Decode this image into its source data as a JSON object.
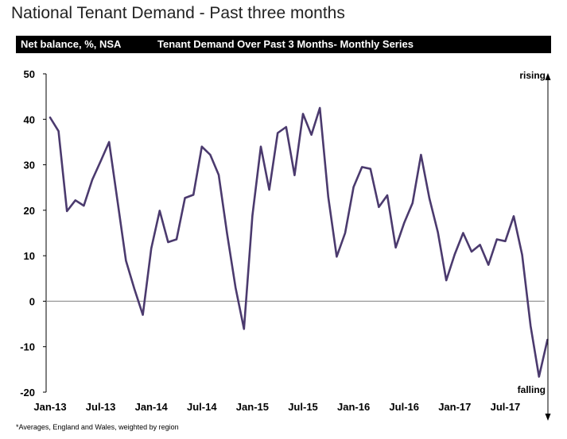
{
  "page_title": "National Tenant Demand - Past three months",
  "header": {
    "left_label": "Net balance, %, NSA",
    "chart_title": "Tenant Demand Over Past 3 Months- Monthly Series"
  },
  "footnote": "*Averages, England and Wales, weighted by region",
  "colors": {
    "line": "#4b3a6e",
    "axis": "#000000",
    "zero_line": "#7f7f7f"
  },
  "chart_data": {
    "type": "line",
    "ylim": [
      -20,
      50
    ],
    "yticks": [
      50,
      40,
      30,
      20,
      10,
      0,
      -10,
      -20
    ],
    "xtick_labels": [
      "Jan-13",
      "Jul-13",
      "Jan-14",
      "Jul-14",
      "Jan-15",
      "Jul-15",
      "Jan-16",
      "Jul-16",
      "Jan-17",
      "Jul-17"
    ],
    "right_axis": {
      "top_label": "rising",
      "bottom_label": "falling"
    },
    "grid": false,
    "series": [
      {
        "x": [
          "2013-01",
          "2013-02",
          "2013-03",
          "2013-04",
          "2013-05",
          "2013-06",
          "2013-07",
          "2013-08",
          "2013-09",
          "2013-10",
          "2013-11",
          "2013-12",
          "2014-01",
          "2014-02",
          "2014-03",
          "2014-04",
          "2014-05",
          "2014-06",
          "2014-07",
          "2014-08",
          "2014-09",
          "2014-10",
          "2014-11",
          "2014-12",
          "2015-01",
          "2015-02",
          "2015-03",
          "2015-04",
          "2015-05",
          "2015-06",
          "2015-07",
          "2015-08",
          "2015-09",
          "2015-10",
          "2015-11",
          "2015-12",
          "2016-01",
          "2016-02",
          "2016-03",
          "2016-04",
          "2016-05",
          "2016-06",
          "2016-07",
          "2016-08",
          "2016-09",
          "2016-10",
          "2016-11",
          "2016-12",
          "2017-01",
          "2017-02",
          "2017-03",
          "2017-04",
          "2017-05",
          "2017-06",
          "2017-07",
          "2017-08",
          "2017-09",
          "2017-10",
          "2017-11",
          "2017-12"
        ],
        "values": [
          40.4,
          37.4,
          19.8,
          22.2,
          21.0,
          26.7,
          30.8,
          35.0,
          22.0,
          8.9,
          2.7,
          -3.0,
          11.6,
          19.9,
          13.0,
          13.6,
          22.7,
          23.4,
          34.0,
          32.2,
          27.8,
          14.8,
          3.0,
          -6.1,
          18.8,
          34.0,
          24.5,
          37.0,
          38.3,
          27.7,
          41.2,
          36.6,
          42.5,
          22.9,
          9.8,
          15.0,
          25.1,
          29.5,
          29.1,
          20.7,
          23.3,
          11.8,
          17.2,
          21.6,
          32.2,
          22.6,
          15.2,
          4.6,
          10.3,
          15.0,
          10.9,
          12.4,
          8.0,
          13.6,
          13.2,
          18.7,
          10.2,
          -5.4,
          -16.6,
          -8.5
        ]
      }
    ]
  }
}
